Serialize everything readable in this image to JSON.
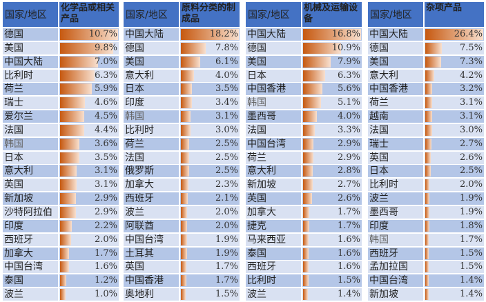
{
  "colors": {
    "header": "#4472c4",
    "row_dark": "#b4c6e7",
    "row_light": "#d9e1f2",
    "bar": "#c65911"
  },
  "panels": [
    {
      "country_header": "国家/地区",
      "category": "化学品或相关产品",
      "rows": [
        [
          "德国",
          10.7
        ],
        [
          "美国",
          9.8
        ],
        [
          "中国大陆",
          7.0
        ],
        [
          "比利时",
          6.3
        ],
        [
          "荷兰",
          5.9
        ],
        [
          "瑞士",
          4.6
        ],
        [
          "爱尔兰",
          4.5
        ],
        [
          "法国",
          4.4
        ],
        [
          "韩国",
          3.6
        ],
        [
          "日本",
          3.5
        ],
        [
          "意大利",
          3.1
        ],
        [
          "英国",
          3.1
        ],
        [
          "新加坡",
          2.9
        ],
        [
          "沙特阿拉伯",
          2.9
        ],
        [
          "印度",
          2.2
        ],
        [
          "西班牙",
          2.0
        ],
        [
          "加拿大",
          1.7
        ],
        [
          "中国台湾",
          1.6
        ],
        [
          "泰国",
          1.2
        ],
        [
          "波兰",
          1.0
        ]
      ]
    },
    {
      "country_header": "国家/地区",
      "category": "原料分类的制成品",
      "rows": [
        [
          "中国大陆",
          18.2
        ],
        [
          "德国",
          7.8
        ],
        [
          "美国",
          6.1
        ],
        [
          "意大利",
          4.0
        ],
        [
          "日本",
          3.5
        ],
        [
          "印度",
          3.4
        ],
        [
          "韩国",
          3.1
        ],
        [
          "比利时",
          3.0
        ],
        [
          "荷兰",
          2.5
        ],
        [
          "法国",
          2.5
        ],
        [
          "俄罗斯",
          2.5
        ],
        [
          "加拿大",
          2.3
        ],
        [
          "西班牙",
          2.1
        ],
        [
          "波兰",
          2.0
        ],
        [
          "阿联酋",
          2.0
        ],
        [
          "中国台湾",
          1.9
        ],
        [
          "土耳其",
          1.9
        ],
        [
          "英国",
          1.7
        ],
        [
          "中国香港",
          1.7
        ],
        [
          "奥地利",
          1.5
        ]
      ]
    },
    {
      "country_header": "国家/地区",
      "category": "机械及运输设备",
      "rows": [
        [
          "中国大陆",
          16.8
        ],
        [
          "德国",
          10.9
        ],
        [
          "美国",
          7.9
        ],
        [
          "日本",
          6.3
        ],
        [
          "中国香港",
          5.6
        ],
        [
          "韩国",
          5.1
        ],
        [
          "墨西哥",
          4.0
        ],
        [
          "法国",
          3.3
        ],
        [
          "中国台湾",
          2.9
        ],
        [
          "荷兰",
          2.9
        ],
        [
          "意大利",
          2.8
        ],
        [
          "新加坡",
          2.7
        ],
        [
          "英国",
          2.6
        ],
        [
          "加拿大",
          1.7
        ],
        [
          "捷克",
          1.7
        ],
        [
          "马来西亚",
          1.6
        ],
        [
          "泰国",
          1.6
        ],
        [
          "西班牙",
          1.6
        ],
        [
          "比利时",
          1.5
        ],
        [
          "波兰",
          1.4
        ]
      ]
    },
    {
      "country_header": "国家/地区",
      "category": "杂项产品",
      "rows": [
        [
          "中国大陆",
          26.4
        ],
        [
          "德国",
          7.5
        ],
        [
          "美国",
          7.3
        ],
        [
          "意大利",
          4.2
        ],
        [
          "中国香港",
          3.2
        ],
        [
          "荷兰",
          3.1
        ],
        [
          "越南",
          3.1
        ],
        [
          "法国",
          3.0
        ],
        [
          "瑞士",
          2.7
        ],
        [
          "英国",
          2.6
        ],
        [
          "日本",
          2.5
        ],
        [
          "比利时",
          2.0
        ],
        [
          "波兰",
          1.9
        ],
        [
          "墨西哥",
          1.9
        ],
        [
          "印度",
          1.8
        ],
        [
          "韩国",
          1.7
        ],
        [
          "西班牙",
          1.5
        ],
        [
          "孟加拉国",
          1.5
        ],
        [
          "中国台湾",
          1.4
        ],
        [
          "新加坡",
          1.4
        ]
      ]
    }
  ]
}
